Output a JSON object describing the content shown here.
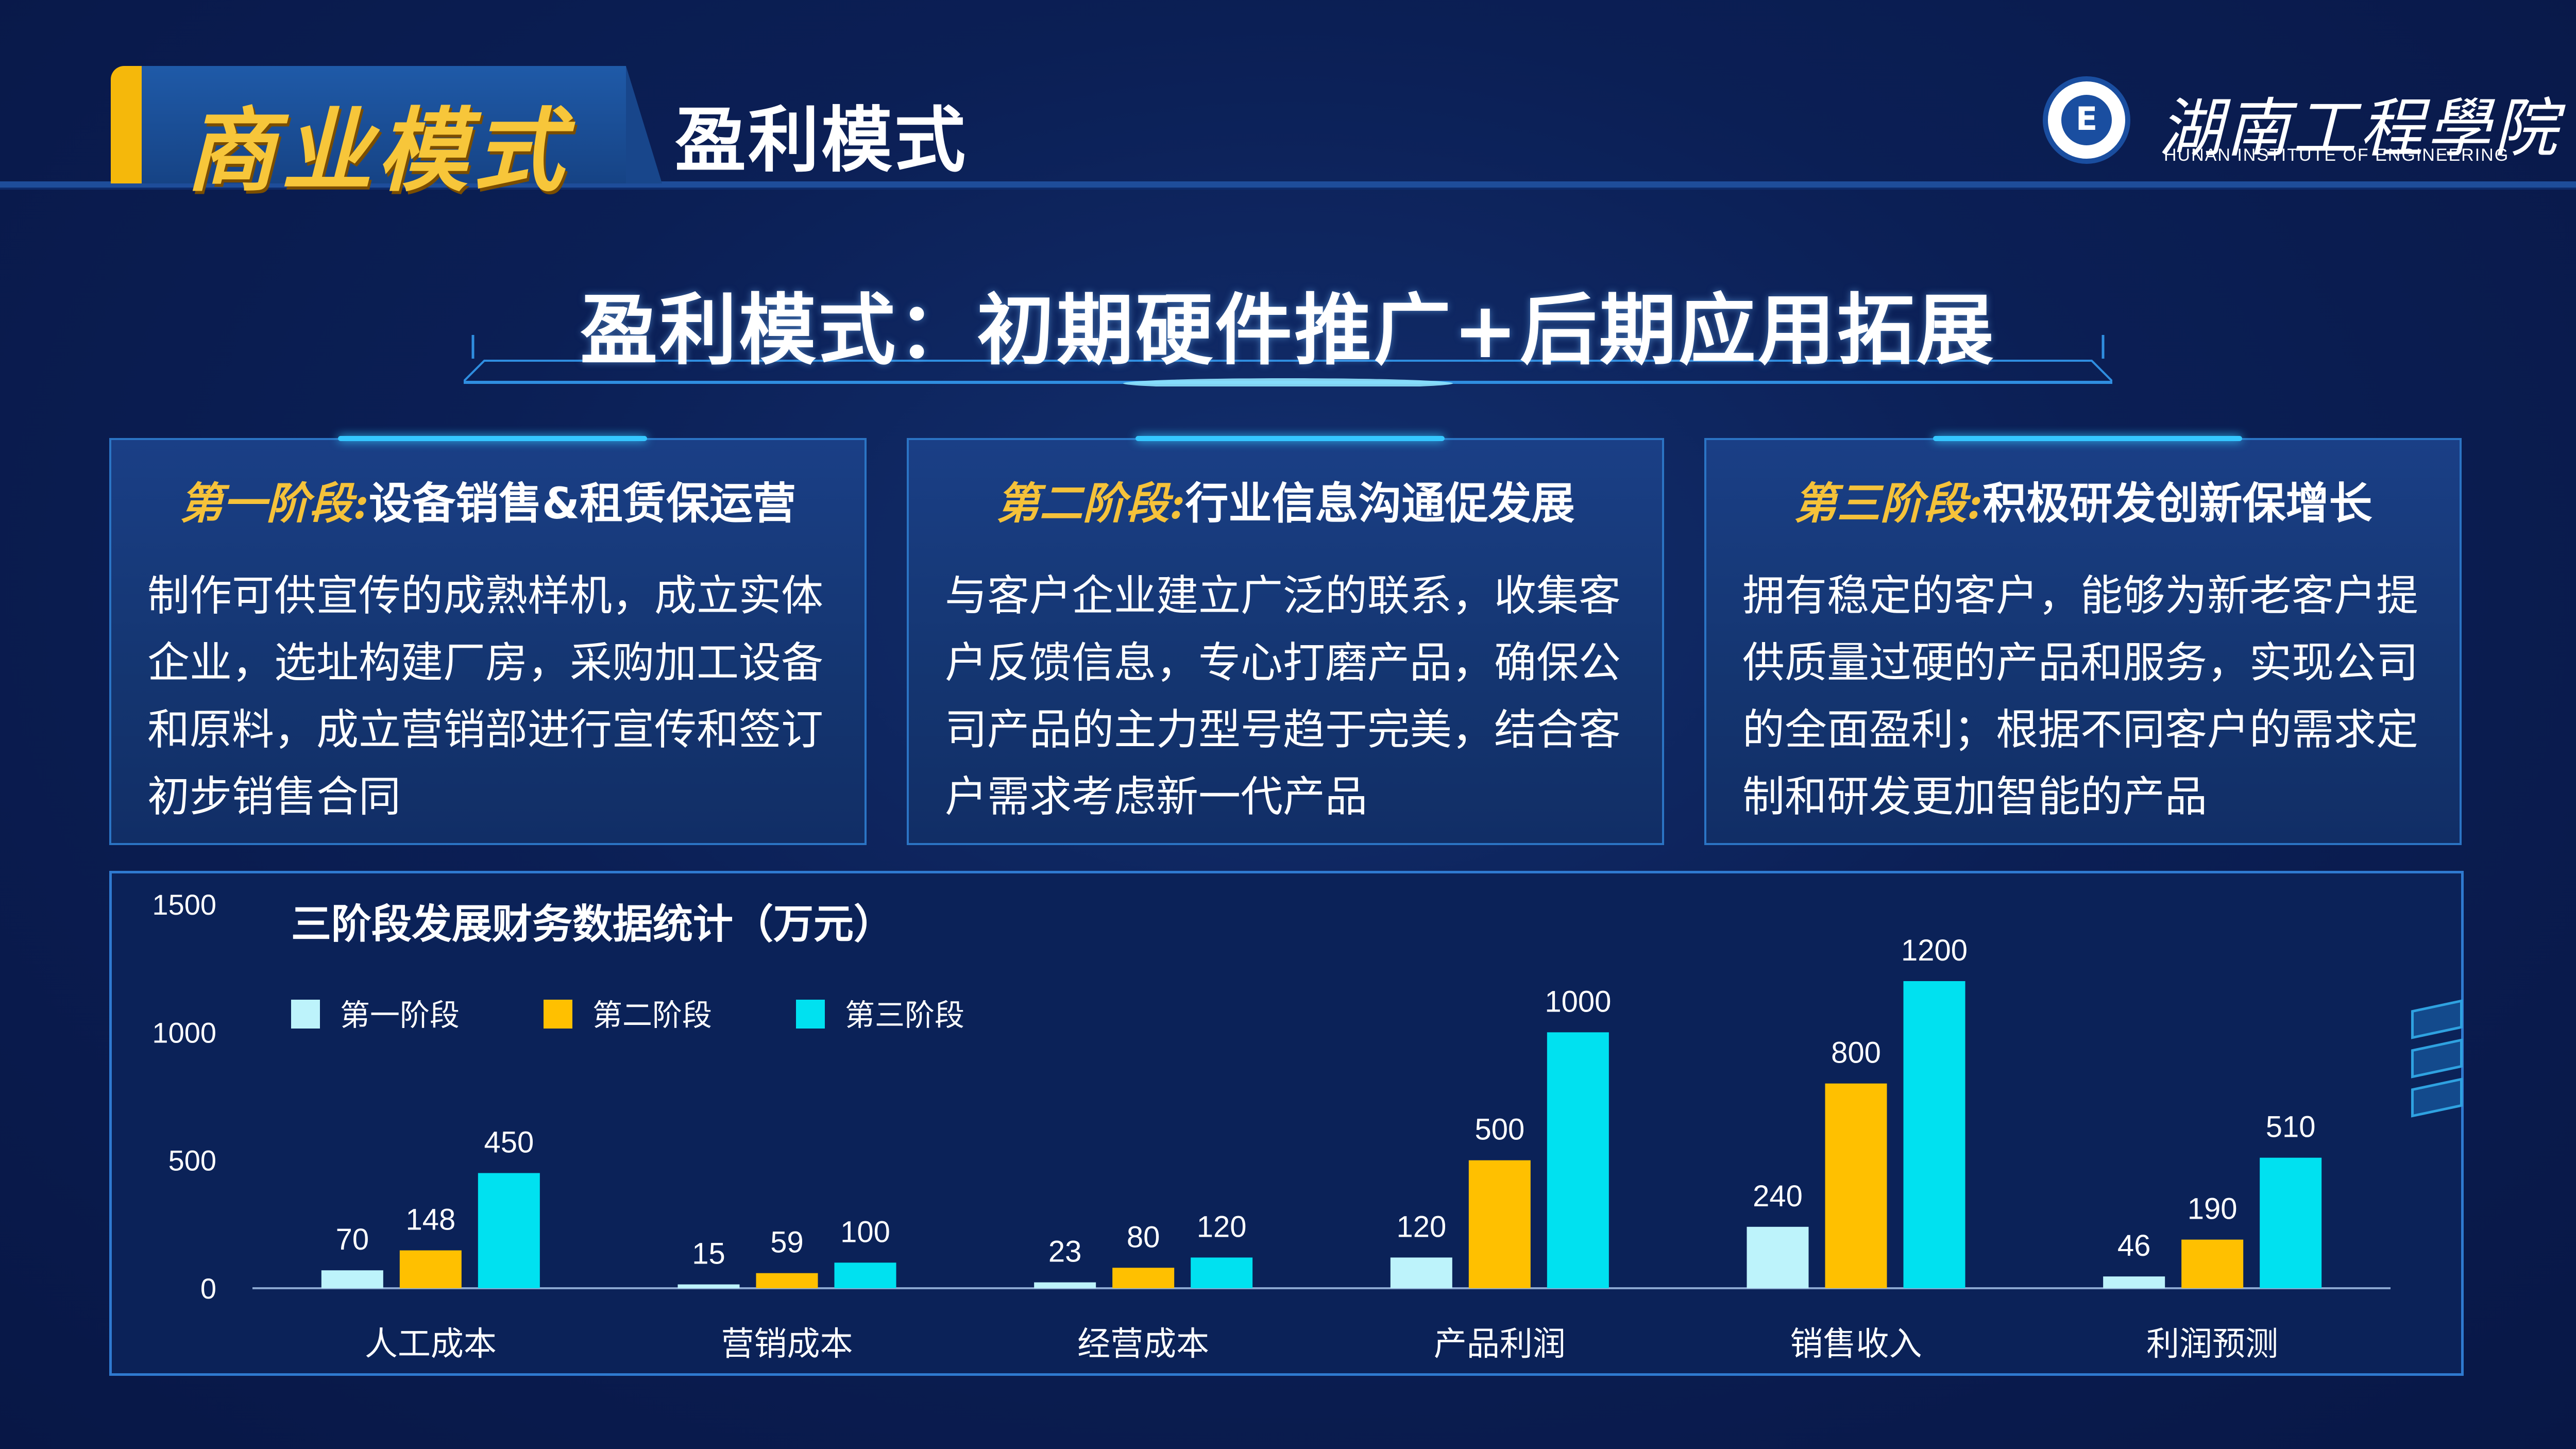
{
  "header": {
    "section_title": "商业模式",
    "page_title": "盈利模式",
    "logo_seal": "E",
    "logo_name": "湖南工程學院",
    "logo_en": "HUNAN INSTITUTE OF ENGINEERING"
  },
  "banner": "盈利模式：初期硬件推广+后期应用拓展",
  "stages": [
    {
      "prefix": "第一阶段:",
      "title": "设备销售&租赁保运营",
      "text": "制作可供宣传的成熟样机，成立实体企业，选址构建厂房，采购加工设备和原料，成立营销部进行宣传和签订初步销售合同"
    },
    {
      "prefix": "第二阶段:",
      "title": "行业信息沟通促发展",
      "text": "与客户企业建立广泛的联系，收集客户反馈信息，专心打磨产品，确保公司产品的主力型号趋于完美，结合客户需求考虑新一代产品"
    },
    {
      "prefix": "第三阶段:",
      "title": "积极研发创新保增长",
      "text": "拥有稳定的客户，能够为新老客户提供质量过硬的产品和服务，实现公司的全面盈利；根据不同客户的需求定制和研发更加智能的产品"
    }
  ],
  "colors": {
    "series1": "#bdf3fb",
    "series2": "#ffc000",
    "series3": "#00e1f0",
    "gold": "#f5c23a"
  },
  "chart_data": {
    "type": "bar",
    "title": "三阶段发展财务数据统计（万元）",
    "xlabel": "",
    "ylabel": "",
    "ylim": [
      0,
      1500
    ],
    "yticks": [
      0,
      500,
      1000,
      1500
    ],
    "grid": false,
    "legend_position": "top-left",
    "categories": [
      "人工成本",
      "营销成本",
      "经营成本",
      "产品利润",
      "销售收入",
      "利润预测"
    ],
    "series": [
      {
        "name": "第一阶段",
        "values": [
          70,
          15,
          23,
          120,
          240,
          46
        ]
      },
      {
        "name": "第二阶段",
        "values": [
          148,
          59,
          80,
          500,
          800,
          190
        ]
      },
      {
        "name": "第三阶段",
        "values": [
          450,
          100,
          120,
          1000,
          1200,
          510
        ]
      }
    ]
  }
}
